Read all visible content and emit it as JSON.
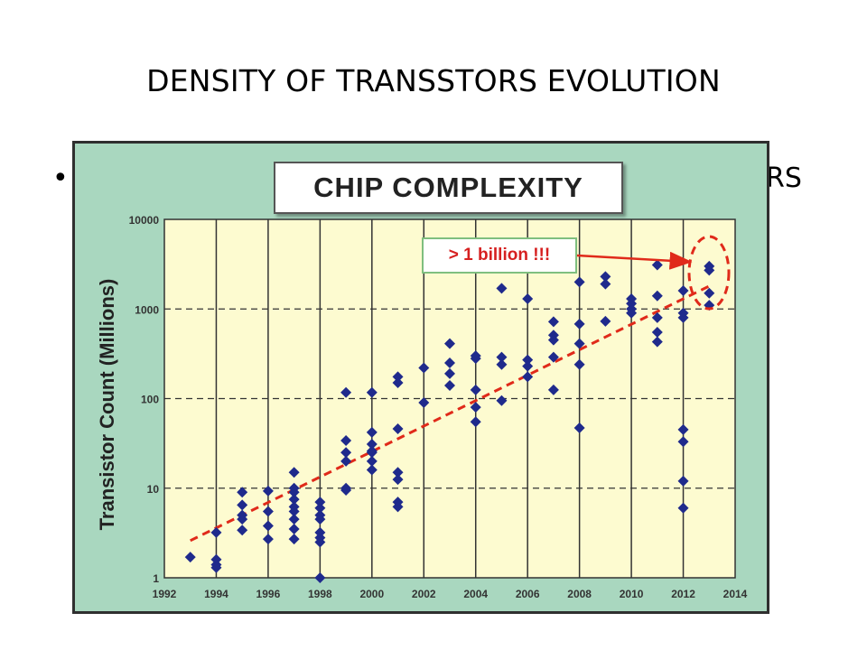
{
  "slide": {
    "title": "DENSITY OF TRANSSTORS EVOLUTION",
    "bullet_glyph": "•",
    "bullet_tail": "RS"
  },
  "chart_data": {
    "type": "scatter",
    "title": "CHIP COMPLEXITY",
    "ylabel": "Transistor Count (Millions)",
    "xlabel": "",
    "y_scale": "log",
    "xlim": [
      1992,
      2014
    ],
    "ylim": [
      1,
      10000
    ],
    "x_ticks": [
      "1992",
      "1994",
      "1996",
      "1998",
      "2000",
      "2002",
      "2004",
      "2006",
      "2008",
      "2010",
      "2012",
      "2014"
    ],
    "y_ticks": [
      "1",
      "10",
      "100",
      "1000",
      "10000"
    ],
    "grid": "vertical solid, horizontal dashed",
    "colors": {
      "background": "#fdfbd0",
      "points": "#1f2a8c",
      "trend": "#e02a1a",
      "frame": "#a9d7bf"
    },
    "annotation": {
      "text": "> 1 billion !!!",
      "color": "#d62020"
    },
    "trend_line": {
      "x": [
        1993,
        2013
      ],
      "y": [
        2.6,
        1800
      ]
    },
    "series": [
      {
        "x": [
          1993,
          1994,
          1994,
          1994,
          1994,
          1995,
          1995,
          1995,
          1995,
          1995,
          1996,
          1996,
          1996,
          1996,
          1997,
          1997,
          1997,
          1997,
          1997,
          1997,
          1997,
          1997,
          1997,
          1998,
          1998,
          1998,
          1998,
          1998,
          1998,
          1998,
          1998,
          1999,
          1999,
          1999,
          1999,
          1999,
          1999,
          2000,
          2000,
          2000,
          2000,
          2000,
          2000,
          2000,
          2001,
          2001,
          2001,
          2001,
          2001,
          2001,
          2001,
          2002,
          2002,
          2003,
          2003,
          2003,
          2003,
          2004,
          2004,
          2004,
          2004,
          2004,
          2005,
          2005,
          2005,
          2005,
          2006,
          2006,
          2006,
          2006,
          2007,
          2007,
          2007,
          2007,
          2007,
          2008,
          2008,
          2008,
          2008,
          2008,
          2009,
          2009,
          2009,
          2010,
          2010,
          2010,
          2010,
          2011,
          2011,
          2011,
          2011,
          2011,
          2012,
          2012,
          2012,
          2012,
          2012,
          2012,
          2012,
          2013,
          2013,
          2013,
          2013
        ],
        "y": [
          1.7,
          3.2,
          1.6,
          1.4,
          1.3,
          9,
          6.5,
          5,
          4.5,
          3.4,
          9.3,
          5.5,
          3.8,
          2.7,
          15,
          10,
          9,
          7.5,
          6.2,
          5.5,
          4.5,
          3.5,
          2.7,
          7,
          6,
          5,
          4.5,
          3.2,
          2.8,
          2.5,
          1.0,
          117,
          34,
          25,
          20,
          10,
          9.5,
          117,
          42,
          31,
          25,
          20,
          16,
          26,
          175,
          150,
          46,
          15,
          12.5,
          7,
          6.2,
          220,
          90,
          410,
          190,
          140,
          250,
          300,
          280,
          125,
          80,
          55,
          1700,
          290,
          240,
          95,
          1300,
          270,
          230,
          175,
          720,
          510,
          450,
          290,
          125,
          2000,
          680,
          410,
          240,
          47,
          2300,
          1900,
          730,
          1300,
          1150,
          1000,
          900,
          3100,
          1400,
          800,
          550,
          430,
          1600,
          900,
          800,
          45,
          33,
          12,
          6,
          3000,
          2700,
          1500,
          1100
        ]
      }
    ]
  }
}
